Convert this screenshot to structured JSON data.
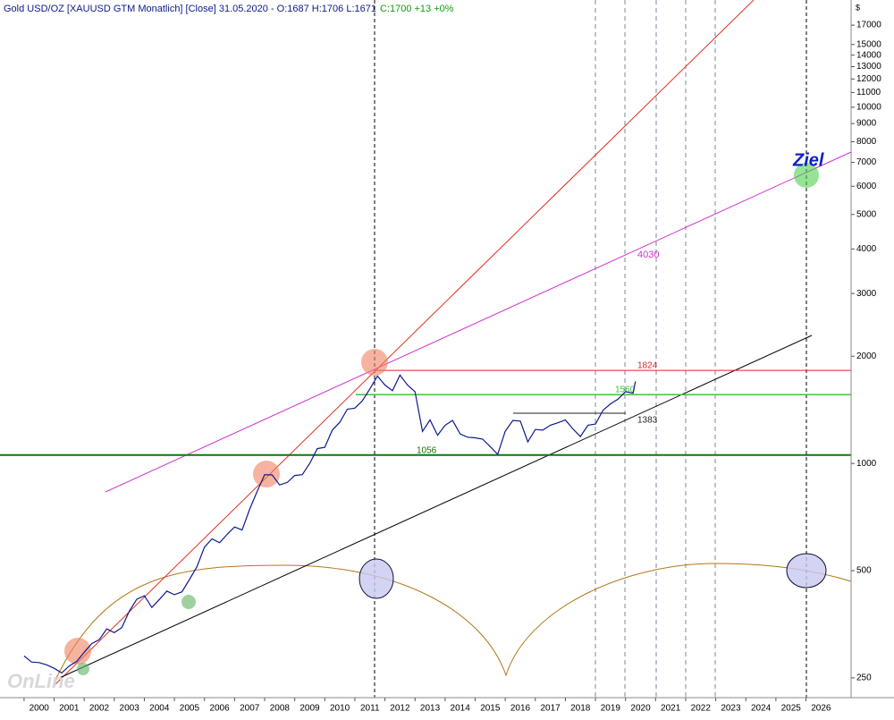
{
  "chart_data": {
    "type": "line",
    "title": "Gold USD/OZ [XAUUSD GTM  Monatlich] [Close] 31.05.2020 - O:1687 H:1706 L:1671",
    "quote": "C:1700 +13 +0%",
    "y_unit": "$",
    "log_scale": true,
    "color": "#0b1a8c",
    "x": [
      2000,
      2000.25,
      2000.5,
      2000.75,
      2001,
      2001.25,
      2001.5,
      2001.75,
      2002,
      2002.25,
      2002.5,
      2002.75,
      2003,
      2003.25,
      2003.5,
      2003.75,
      2004,
      2004.25,
      2004.5,
      2004.75,
      2005,
      2005.25,
      2005.5,
      2005.75,
      2006,
      2006.25,
      2006.5,
      2006.75,
      2007,
      2007.25,
      2007.5,
      2007.75,
      2008,
      2008.25,
      2008.5,
      2008.75,
      2009,
      2009.25,
      2009.5,
      2009.75,
      2010,
      2010.25,
      2010.5,
      2010.75,
      2011,
      2011.25,
      2011.5,
      2011.75,
      2012,
      2012.25,
      2012.5,
      2012.75,
      2013,
      2013.25,
      2013.5,
      2013.75,
      2014,
      2014.25,
      2014.5,
      2014.75,
      2015,
      2015.25,
      2015.5,
      2015.75,
      2016,
      2016.25,
      2016.5,
      2016.75,
      2017,
      2017.25,
      2017.5,
      2017.75,
      2018,
      2018.25,
      2018.5,
      2018.75,
      2019,
      2019.25,
      2019.5,
      2019.75,
      2020,
      2020.25,
      2020.33
    ],
    "values": [
      288,
      277,
      276,
      272,
      266,
      258,
      270,
      278,
      295,
      312,
      320,
      343,
      335,
      346,
      385,
      416,
      425,
      394,
      415,
      438,
      428,
      436,
      472,
      513,
      582,
      614,
      599,
      632,
      663,
      650,
      743,
      834,
      930,
      928,
      870,
      884,
      925,
      930,
      1000,
      1100,
      1110,
      1240,
      1305,
      1420,
      1430,
      1500,
      1620,
      1760,
      1660,
      1600,
      1770,
      1660,
      1590,
      1230,
      1325,
      1200,
      1280,
      1320,
      1210,
      1185,
      1180,
      1170,
      1115,
      1060,
      1230,
      1320,
      1315,
      1150,
      1245,
      1240,
      1280,
      1300,
      1325,
      1250,
      1190,
      1280,
      1290,
      1410,
      1470,
      1515,
      1590,
      1575,
      1700
    ],
    "xlim": [
      1999.2,
      2027.5
    ],
    "ylim": [
      220,
      20000
    ],
    "xticks": [
      2000,
      2001,
      2002,
      2003,
      2004,
      2005,
      2006,
      2007,
      2008,
      2009,
      2010,
      2011,
      2012,
      2013,
      2014,
      2015,
      2016,
      2017,
      2018,
      2019,
      2020,
      2021,
      2022,
      2023,
      2024,
      2025,
      2026
    ],
    "yticks": [
      250,
      500,
      1000,
      2000,
      3000,
      4000,
      5000,
      6000,
      7000,
      8000,
      9000,
      10000,
      11000,
      12000,
      13000,
      14000,
      15000,
      17000
    ],
    "levels": [
      {
        "value": 1824,
        "color": "#e0202a"
      },
      {
        "value": 1560,
        "color": "#3cc43c"
      },
      {
        "value": 1383,
        "color": "#222222"
      },
      {
        "value": 1056,
        "color": "#0a7a0a"
      }
    ],
    "annotations": {
      "target_level": 4030,
      "target": "Ziel"
    },
    "watermark": "OnLine"
  }
}
